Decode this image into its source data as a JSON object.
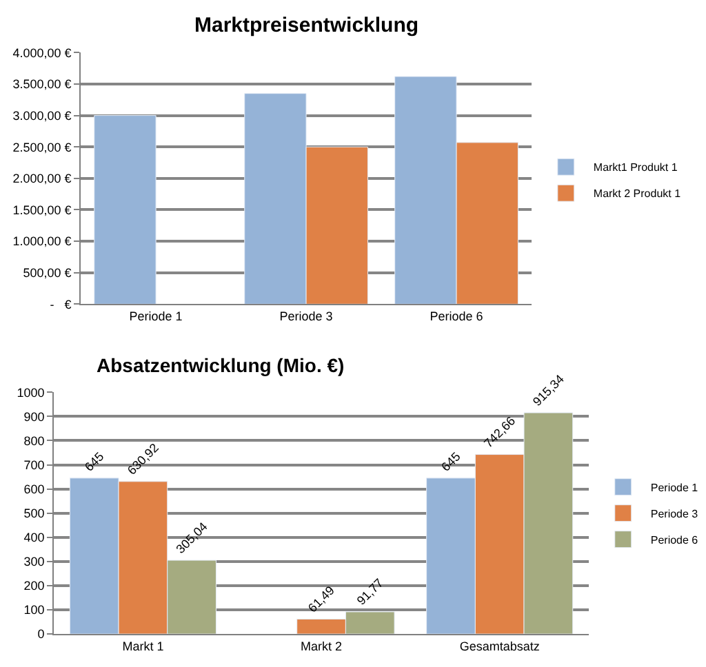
{
  "chart_data": [
    {
      "type": "bar",
      "title": "Marktpreisentwicklung",
      "categories": [
        "Periode 1",
        "Periode 3",
        "Periode 6"
      ],
      "series": [
        {
          "name": "Markt1 Produkt 1",
          "color": "#95b3d7",
          "values": [
            3000,
            3350,
            3620
          ]
        },
        {
          "name": "Markt 2 Produkt 1",
          "color": "#e08146",
          "values": [
            null,
            2500,
            2570
          ]
        }
      ],
      "ylim": [
        0,
        4000
      ],
      "yticks": [
        {
          "value": 0,
          "label": "-   €"
        },
        {
          "value": 500,
          "label": "500,00 €"
        },
        {
          "value": 1000,
          "label": "1.000,00 €"
        },
        {
          "value": 1500,
          "label": "1.500,00 €"
        },
        {
          "value": 2000,
          "label": "2.000,00 €"
        },
        {
          "value": 2500,
          "label": "2.500,00 €"
        },
        {
          "value": 3000,
          "label": "3.000,00 €"
        },
        {
          "value": 3500,
          "label": "3.500,00 €"
        },
        {
          "value": 4000,
          "label": "4.000,00 €"
        }
      ],
      "grid": "y",
      "legend": "right"
    },
    {
      "type": "bar",
      "title": "Absatzentwicklung (Mio. €)",
      "categories": [
        "Markt 1",
        "Markt 2",
        "Gesamtabsatz"
      ],
      "series": [
        {
          "name": "Periode 1",
          "color": "#95b3d7",
          "values": [
            645,
            null,
            645
          ],
          "value_labels": [
            "645",
            null,
            "645"
          ]
        },
        {
          "name": "Periode 3",
          "color": "#e08146",
          "values": [
            630.92,
            61.49,
            742.66
          ],
          "value_labels": [
            "630,92",
            "61,49",
            "742,66"
          ]
        },
        {
          "name": "Periode 6",
          "color": "#a5ab80",
          "values": [
            305.04,
            91.77,
            915.34
          ],
          "value_labels": [
            "305,04",
            "91,77",
            "915,34"
          ]
        }
      ],
      "ylim": [
        0,
        1000
      ],
      "yticks": [
        0,
        100,
        200,
        300,
        400,
        500,
        600,
        700,
        800,
        900,
        1000
      ],
      "grid": "y",
      "legend": "right"
    }
  ]
}
